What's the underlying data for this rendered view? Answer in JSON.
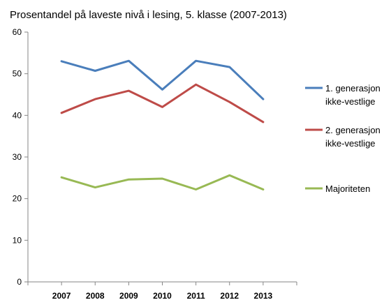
{
  "chart_data": {
    "type": "line",
    "title": "Prosentandel på laveste nivå i lesing, 5. klasse (2007-2013)",
    "xlabel": "",
    "ylabel": "",
    "categories": [
      "2007",
      "2008",
      "2009",
      "2010",
      "2011",
      "2012",
      "2013"
    ],
    "ylim": [
      0,
      60
    ],
    "yticks": [
      0,
      10,
      20,
      30,
      40,
      50,
      60
    ],
    "grid": false,
    "legend_position": "right",
    "series": [
      {
        "name_lines": [
          "1. generasjon",
          "ikke-vestlige"
        ],
        "color": "#4a7ebb",
        "values": [
          53.0,
          50.7,
          53.1,
          46.2,
          53.1,
          51.6,
          43.9
        ]
      },
      {
        "name_lines": [
          "2. generasjon",
          "ikke-vestlige"
        ],
        "color": "#be4b48",
        "values": [
          40.6,
          43.9,
          45.9,
          42.0,
          47.4,
          43.2,
          38.4
        ]
      },
      {
        "name_lines": [
          "Majoriteten"
        ],
        "color": "#98b954",
        "values": [
          25.1,
          22.7,
          24.6,
          24.8,
          22.2,
          25.6,
          22.2
        ]
      }
    ]
  }
}
